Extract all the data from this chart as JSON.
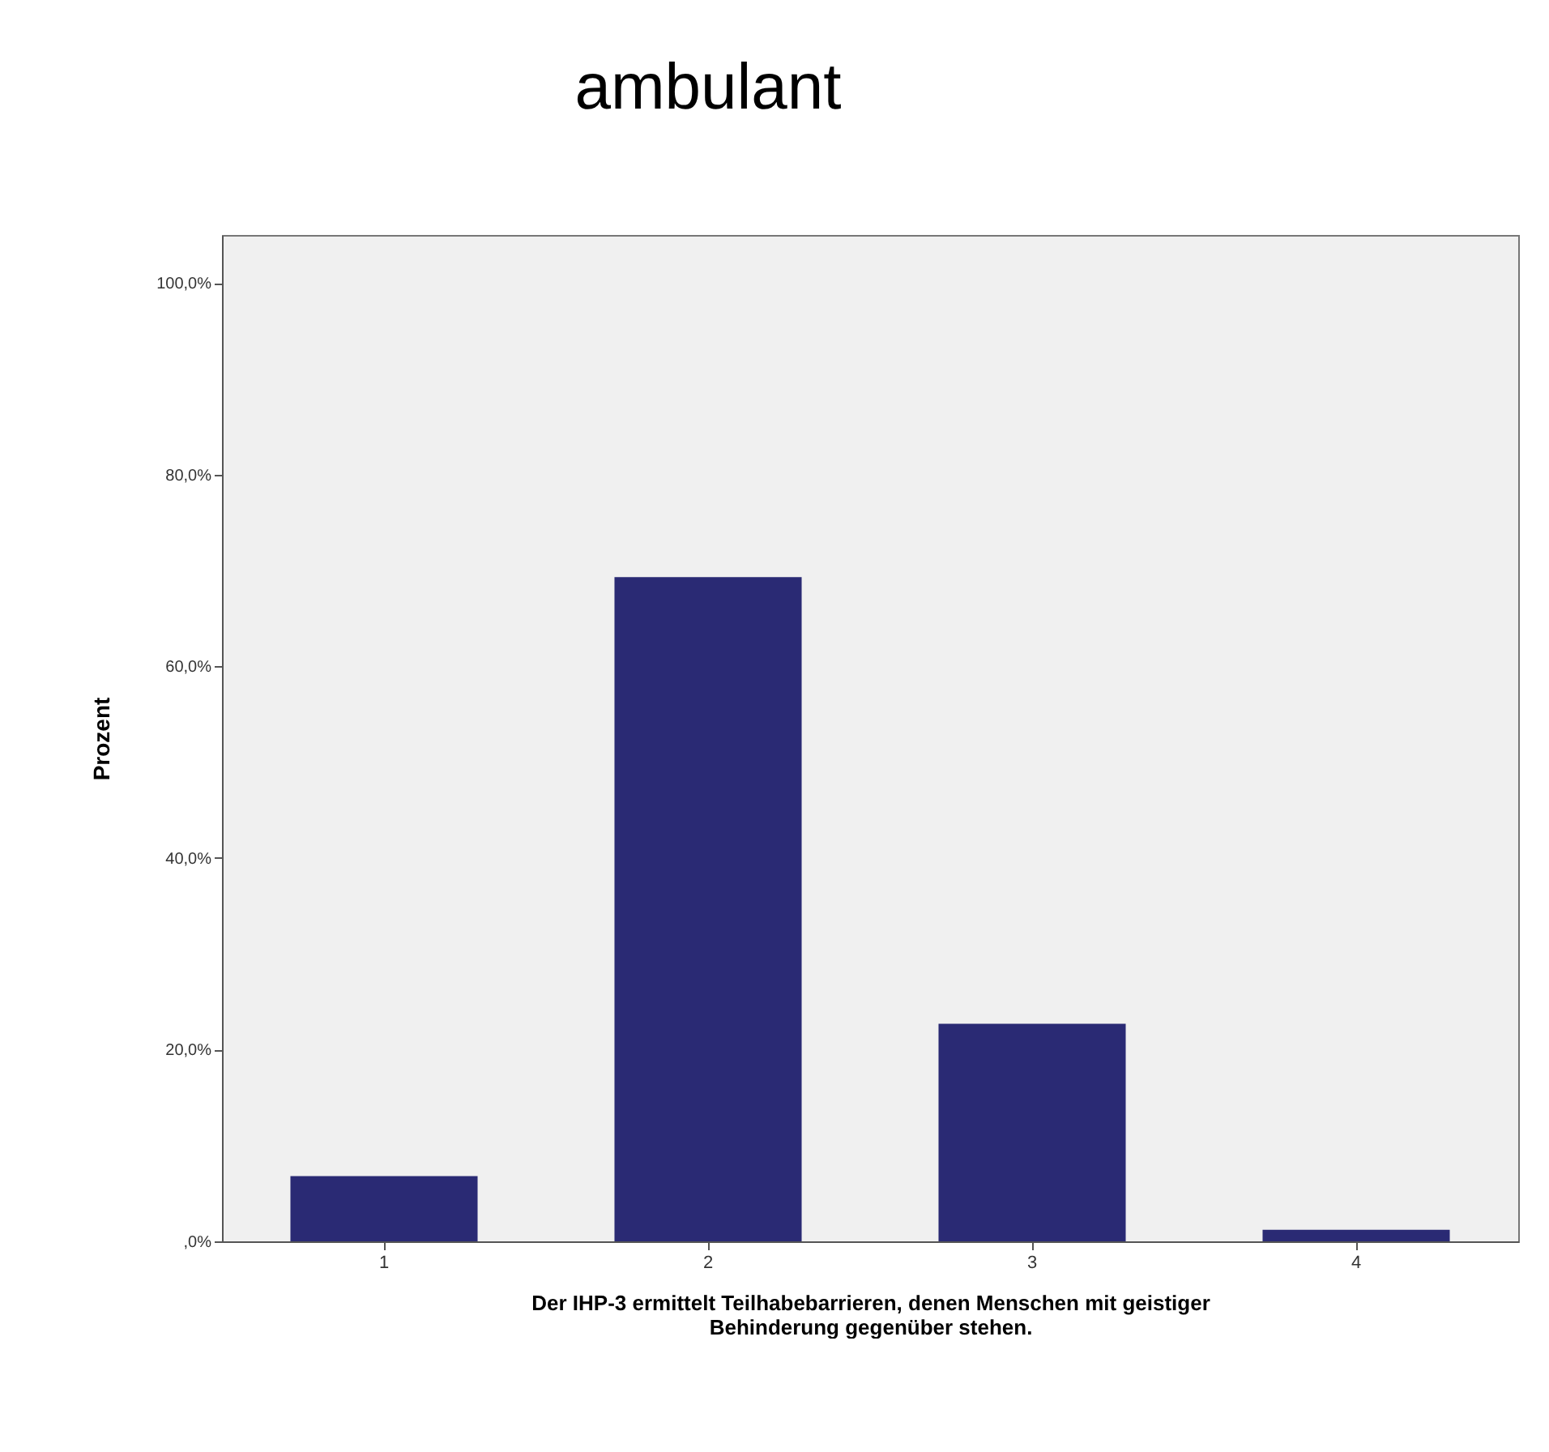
{
  "chart_data": {
    "type": "bar",
    "title": "ambulant",
    "xlabel": "Der IHP-3 ermittelt Teilhabebarrieren, denen Menschen mit geistiger\nBehinderung gegenüber stehen.",
    "ylabel": "Prozent",
    "categories": [
      "1",
      "2",
      "3",
      "4"
    ],
    "values": [
      6.8,
      69.3,
      22.7,
      1.2
    ],
    "color": "#2a2a74",
    "ylim": [
      0,
      105
    ],
    "yticks": [
      {
        "value": 0,
        "label": ",0%"
      },
      {
        "value": 20,
        "label": "20,0%"
      },
      {
        "value": 40,
        "label": "40,0%"
      },
      {
        "value": 60,
        "label": "60,0%"
      },
      {
        "value": 80,
        "label": "80,0%"
      },
      {
        "value": 100,
        "label": "100,0%"
      }
    ],
    "grid": false
  }
}
